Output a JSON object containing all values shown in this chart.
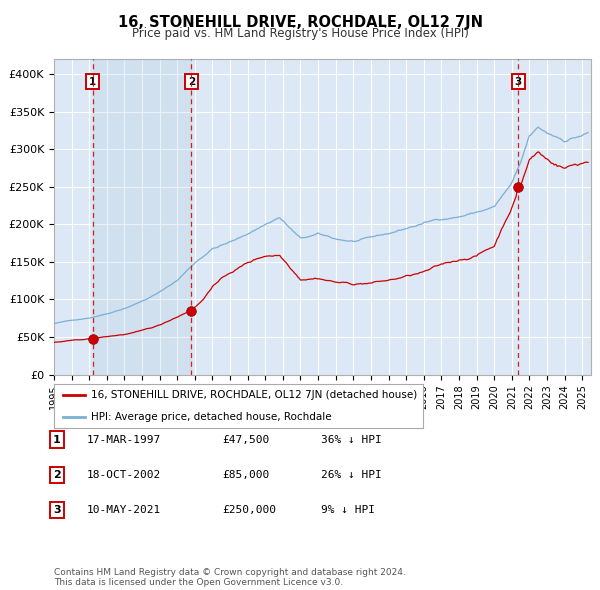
{
  "title": "16, STONEHILL DRIVE, ROCHDALE, OL12 7JN",
  "subtitle": "Price paid vs. HM Land Registry's House Price Index (HPI)",
  "sale_prices": [
    47500,
    85000,
    250000
  ],
  "sale_labels": [
    "1",
    "2",
    "3"
  ],
  "sale_label_dates": [
    1997.21,
    2002.8,
    2021.36
  ],
  "ylim": [
    0,
    420000
  ],
  "yticks": [
    0,
    50000,
    100000,
    150000,
    200000,
    250000,
    300000,
    350000,
    400000
  ],
  "ytick_labels": [
    "£0",
    "£50K",
    "£100K",
    "£150K",
    "£200K",
    "£250K",
    "£300K",
    "£350K",
    "£400K"
  ],
  "xlim_start": 1995.0,
  "xlim_end": 2025.5,
  "red_line_color": "#cc0000",
  "blue_line_color": "#7bafd4",
  "sale_dot_color": "#cc0000",
  "bg_color": "#ffffff",
  "plot_bg_color": "#dce8f5",
  "grid_color": "#ffffff",
  "legend_label1": "16, STONEHILL DRIVE, ROCHDALE, OL12 7JN (detached house)",
  "legend_label2": "HPI: Average price, detached house, Rochdale",
  "table_rows": [
    {
      "num": "1",
      "date": "17-MAR-1997",
      "price": "£47,500",
      "pct": "36% ↓ HPI"
    },
    {
      "num": "2",
      "date": "18-OCT-2002",
      "price": "£85,000",
      "pct": "26% ↓ HPI"
    },
    {
      "num": "3",
      "date": "10-MAY-2021",
      "price": "£250,000",
      "pct": "9% ↓ HPI"
    }
  ],
  "footnote": "Contains HM Land Registry data © Crown copyright and database right 2024.\nThis data is licensed under the Open Government Licence v3.0.",
  "shaded_region": [
    1997.21,
    2002.8
  ]
}
